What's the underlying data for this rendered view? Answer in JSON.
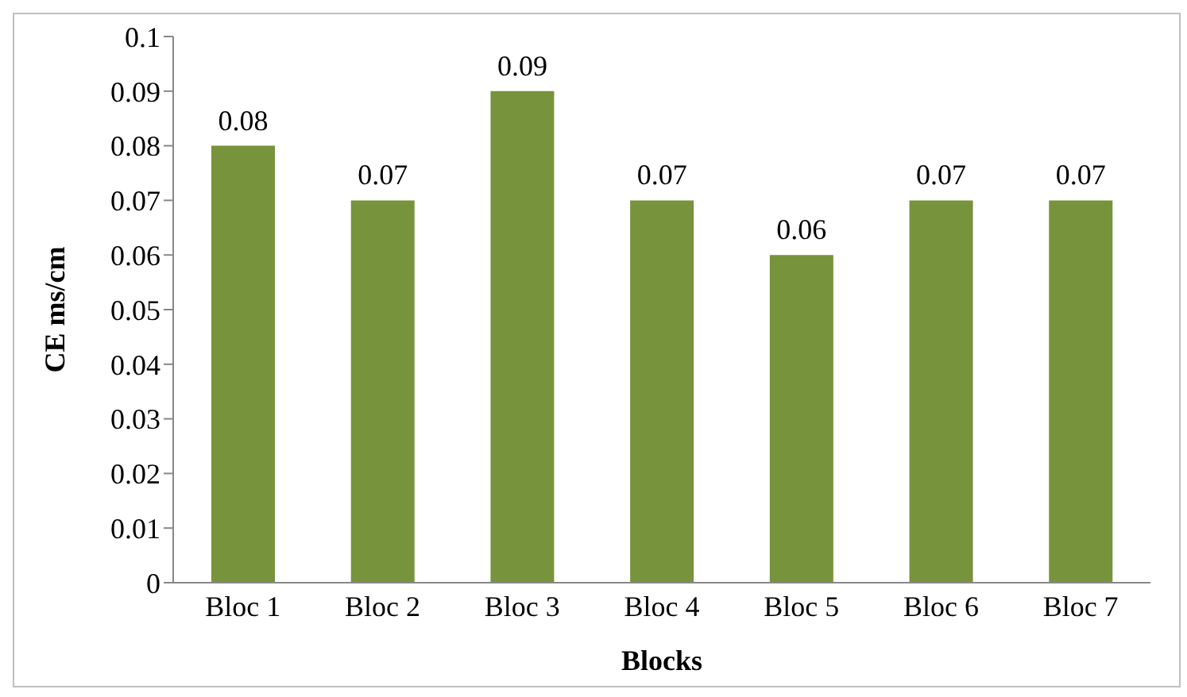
{
  "chart_data": {
    "type": "bar",
    "xlabel": "Blocks",
    "ylabel": "CE ms/cm",
    "categories": [
      "Bloc 1",
      "Bloc 2",
      "Bloc 3",
      "Bloc 4",
      "Bloc 5",
      "Bloc 6",
      "Bloc 7"
    ],
    "values": [
      0.08,
      0.07,
      0.09,
      0.07,
      0.06,
      0.07,
      0.07
    ],
    "color": "#77933c",
    "ylim": [
      0,
      0.1
    ],
    "yticks": [
      0,
      0.01,
      0.02,
      0.03,
      0.04,
      0.05,
      0.06,
      0.07,
      0.08,
      0.09,
      0.1
    ],
    "grid": false,
    "legend": false,
    "data_labels": true
  }
}
